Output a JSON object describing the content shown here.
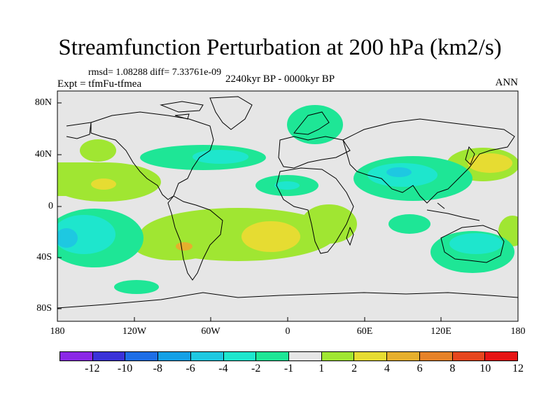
{
  "figure": {
    "title": "Streamfunction Perturbation at 200 hPa (km2/s)",
    "stats": "rmsd= 1.08288 diff= 7.33761e-09",
    "experiment": "Expt = tfmFu-tfmea",
    "period": "2240kyr BP - 0000kyr BP",
    "season": "ANN"
  },
  "axes": {
    "y_ticks": [
      "80N",
      "40N",
      "0",
      "40S",
      "80S"
    ],
    "x_ticks": [
      "180",
      "120W",
      "60W",
      "0",
      "60E",
      "120E",
      "180"
    ]
  },
  "colorbar": {
    "colors": [
      "#8b28e6",
      "#3a32d8",
      "#1e6ee6",
      "#14a0e6",
      "#1ec8e1",
      "#1ee6cd",
      "#1ee696",
      "#e6e6e6",
      "#a0e632",
      "#e6dc32",
      "#e6af2d",
      "#e68228",
      "#e6461e",
      "#e61414"
    ],
    "labels": [
      "-12",
      "-10",
      "-8",
      "-6",
      "-4",
      "-2",
      "-1",
      "1",
      "2",
      "4",
      "6",
      "8",
      "10",
      "12"
    ]
  }
}
